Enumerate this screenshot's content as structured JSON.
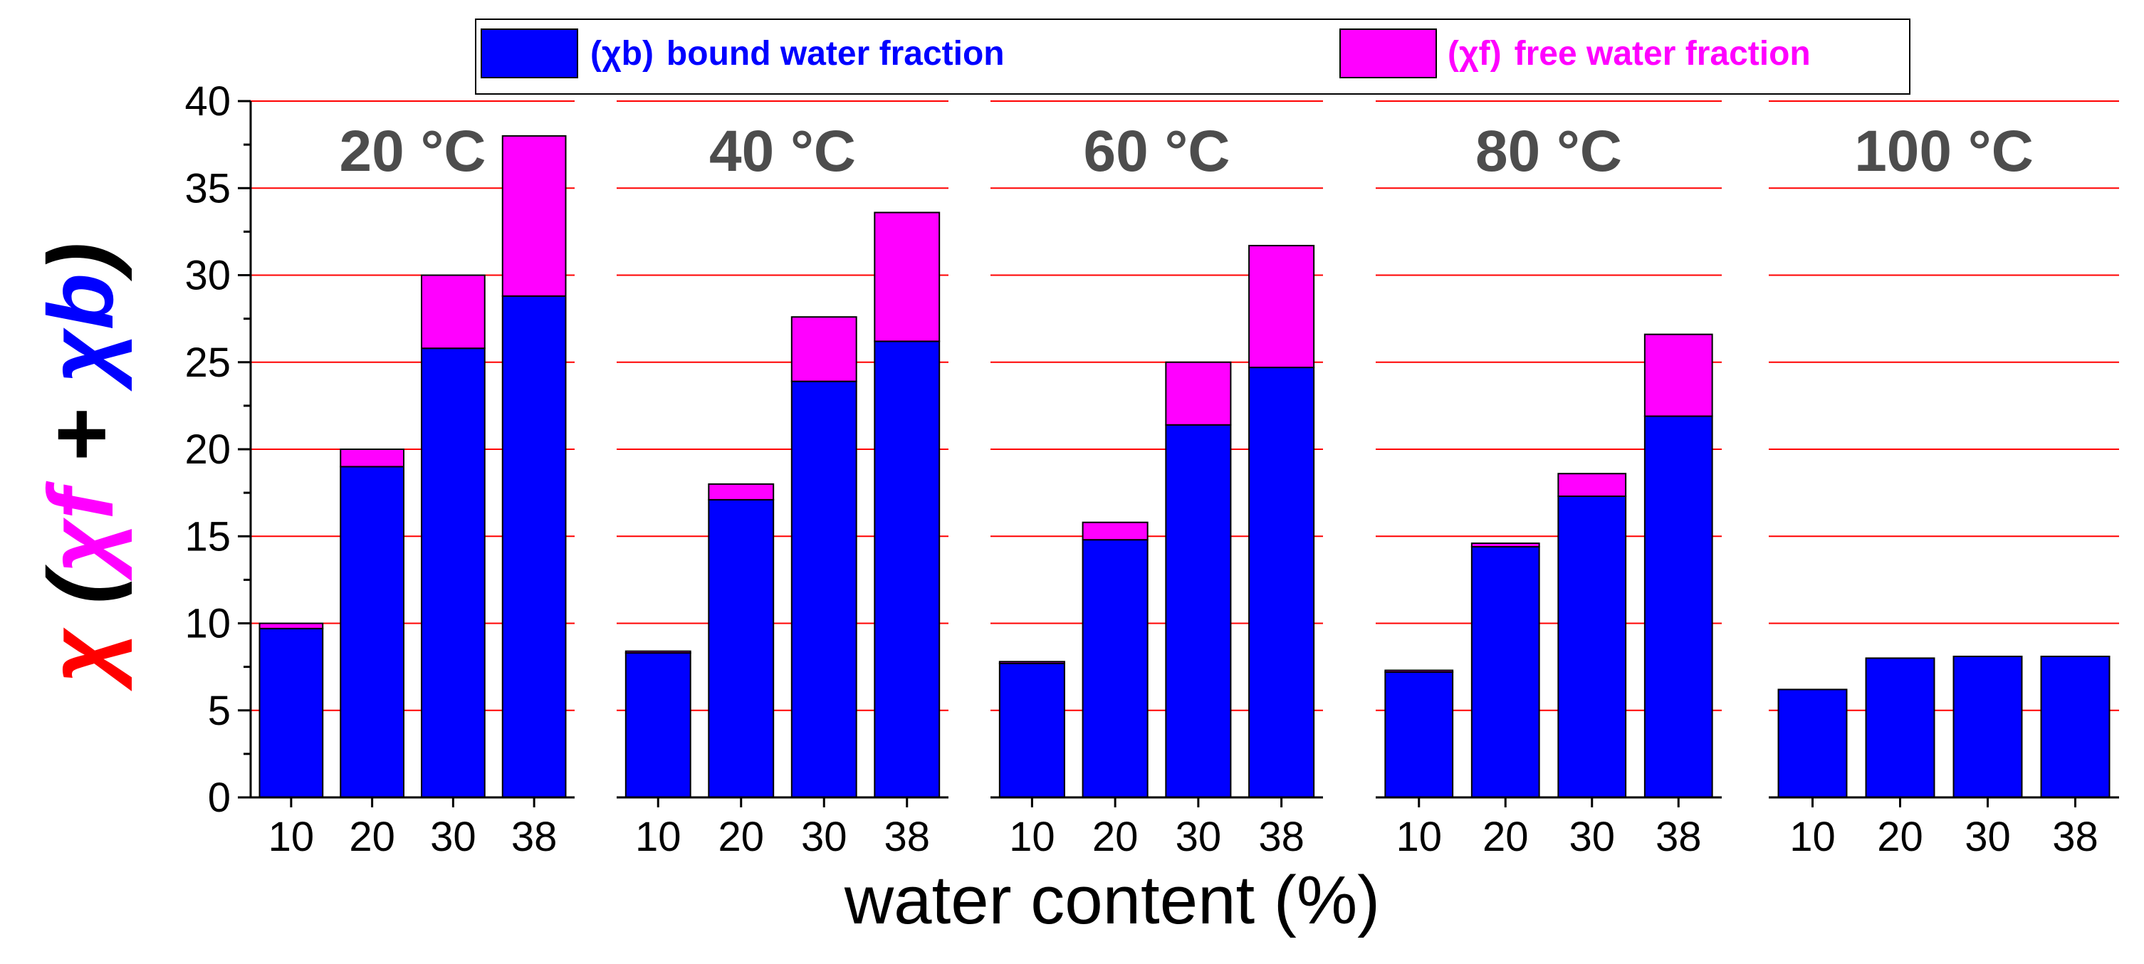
{
  "colors": {
    "bound": "#0000FF",
    "free": "#FF00FF",
    "grid": "#FF0000",
    "axis": "#000000",
    "panel_title": "#4D4D4D"
  },
  "legend": {
    "bound_label": "bound water fraction",
    "bound_symbol": "(χb)",
    "free_label": "free water fraction",
    "free_symbol": "(χf)"
  },
  "y_axis_title": {
    "parts": [
      "χ",
      " (",
      "χf",
      " + ",
      "χb",
      ")"
    ]
  },
  "chart_data": {
    "type": "bar",
    "stacked": true,
    "xlabel": "water content (%)",
    "ylabel": "χ (χf + χb)",
    "ylim": [
      0,
      40
    ],
    "yticks": [
      0,
      5,
      10,
      15,
      20,
      25,
      30,
      35,
      40
    ],
    "grid": "horizontal",
    "categories": [
      "10",
      "20",
      "30",
      "38"
    ],
    "panels": [
      {
        "title": "20 °C",
        "series": [
          {
            "name": "(χb) bound water fraction",
            "values": [
              9.7,
              19.0,
              25.8,
              28.8
            ]
          },
          {
            "name": "(χf) free water fraction",
            "values": [
              0.3,
              1.0,
              4.2,
              9.2
            ]
          }
        ]
      },
      {
        "title": "40 °C",
        "series": [
          {
            "name": "(χb) bound water fraction",
            "values": [
              8.3,
              17.1,
              23.9,
              26.2
            ]
          },
          {
            "name": "(χf) free water fraction",
            "values": [
              0.1,
              0.9,
              3.7,
              7.4
            ]
          }
        ]
      },
      {
        "title": "60 °C",
        "series": [
          {
            "name": "(χb) bound water fraction",
            "values": [
              7.7,
              14.8,
              21.4,
              24.7
            ]
          },
          {
            "name": "(χf) free water fraction",
            "values": [
              0.1,
              1.0,
              3.6,
              7.0
            ]
          }
        ]
      },
      {
        "title": "80 °C",
        "series": [
          {
            "name": "(χb) bound water fraction",
            "values": [
              7.2,
              14.4,
              17.3,
              21.9
            ]
          },
          {
            "name": "(χf) free water fraction",
            "values": [
              0.1,
              0.2,
              1.3,
              4.7
            ]
          }
        ]
      },
      {
        "title": "100 °C",
        "series": [
          {
            "name": "(χb) bound water fraction",
            "values": [
              6.2,
              8.0,
              8.1,
              8.1
            ]
          },
          {
            "name": "(χf) free water fraction",
            "values": [
              0.0,
              0.0,
              0.0,
              0.0
            ]
          }
        ]
      }
    ]
  }
}
